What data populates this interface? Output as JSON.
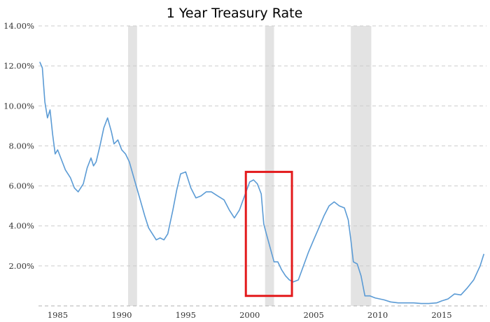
{
  "chart_data": {
    "type": "line",
    "title": "1 Year Treasury Rate",
    "xlabel": "",
    "ylabel": "",
    "xlim": [
      1983.5,
      2018.5
    ],
    "ylim": [
      0,
      14
    ],
    "grid": true,
    "y_ticks": [
      {
        "value": 2,
        "label": "2.00%"
      },
      {
        "value": 4,
        "label": "4.00%"
      },
      {
        "value": 6,
        "label": "6.00%"
      },
      {
        "value": 8,
        "label": "8.00%"
      },
      {
        "value": 10,
        "label": "10.00%"
      },
      {
        "value": 12,
        "label": "12.00%"
      },
      {
        "value": 14,
        "label": "14.00%"
      }
    ],
    "x_ticks": [
      {
        "value": 1985,
        "label": "1985"
      },
      {
        "value": 1990,
        "label": "1990"
      },
      {
        "value": 1995,
        "label": "1995"
      },
      {
        "value": 2000,
        "label": "2000"
      },
      {
        "value": 2005,
        "label": "2005"
      },
      {
        "value": 2010,
        "label": "2010"
      },
      {
        "value": 2015,
        "label": "2015"
      }
    ],
    "recessions": [
      {
        "start": 1990.5,
        "end": 1991.2
      },
      {
        "start": 2001.2,
        "end": 2001.9
      },
      {
        "start": 2007.9,
        "end": 2009.5
      }
    ],
    "highlight_box": {
      "x_start": 1999.7,
      "x_end": 2003.3,
      "y_start": 0.5,
      "y_end": 6.7,
      "color": "#e31a1c"
    },
    "series": [
      {
        "color": "#5b9bd5",
        "x": [
          1983.6,
          1983.8,
          1984.0,
          1984.2,
          1984.4,
          1984.6,
          1984.8,
          1985.0,
          1985.3,
          1985.6,
          1986.0,
          1986.3,
          1986.6,
          1987.0,
          1987.3,
          1987.6,
          1987.8,
          1988.0,
          1988.3,
          1988.6,
          1988.9,
          1989.2,
          1989.4,
          1989.7,
          1990.0,
          1990.3,
          1990.6,
          1991.0,
          1991.4,
          1991.8,
          1992.1,
          1992.4,
          1992.7,
          1993.0,
          1993.3,
          1993.6,
          1994.0,
          1994.3,
          1994.6,
          1995.0,
          1995.4,
          1995.8,
          1996.2,
          1996.6,
          1997.0,
          1997.5,
          1998.0,
          1998.4,
          1998.8,
          1999.2,
          1999.6,
          2000.0,
          2000.3,
          2000.6,
          2000.9,
          2001.1,
          2001.3,
          2001.6,
          2001.9,
          2002.2,
          2002.5,
          2002.8,
          2003.1,
          2003.4,
          2003.8,
          2004.2,
          2004.6,
          2005.0,
          2005.4,
          2005.8,
          2006.2,
          2006.6,
          2007.0,
          2007.4,
          2007.7,
          2007.9,
          2008.1,
          2008.4,
          2008.7,
          2009.0,
          2009.4,
          2009.8,
          2010.5,
          2011.0,
          2011.6,
          2012.2,
          2012.8,
          2013.4,
          2014.0,
          2014.6,
          2015.0,
          2015.5,
          2016.0,
          2016.5,
          2017.0,
          2017.5,
          2018.0,
          2018.3
        ],
        "y": [
          12.2,
          11.9,
          10.2,
          9.4,
          9.8,
          8.6,
          7.6,
          7.8,
          7.3,
          6.8,
          6.4,
          5.9,
          5.7,
          6.1,
          6.9,
          7.4,
          7.0,
          7.2,
          8.0,
          8.9,
          9.4,
          8.7,
          8.1,
          8.3,
          7.8,
          7.6,
          7.2,
          6.3,
          5.4,
          4.5,
          3.9,
          3.6,
          3.3,
          3.4,
          3.3,
          3.6,
          4.8,
          5.8,
          6.6,
          6.7,
          5.9,
          5.4,
          5.5,
          5.7,
          5.7,
          5.5,
          5.3,
          4.8,
          4.4,
          4.8,
          5.5,
          6.2,
          6.3,
          6.1,
          5.6,
          4.1,
          3.6,
          2.9,
          2.2,
          2.2,
          1.8,
          1.5,
          1.3,
          1.2,
          1.3,
          2.0,
          2.7,
          3.3,
          3.9,
          4.5,
          5.0,
          5.2,
          5.0,
          4.9,
          4.3,
          3.3,
          2.2,
          2.1,
          1.5,
          0.5,
          0.5,
          0.4,
          0.3,
          0.2,
          0.15,
          0.15,
          0.15,
          0.12,
          0.12,
          0.15,
          0.25,
          0.35,
          0.6,
          0.55,
          0.9,
          1.3,
          2.0,
          2.6
        ]
      }
    ]
  }
}
